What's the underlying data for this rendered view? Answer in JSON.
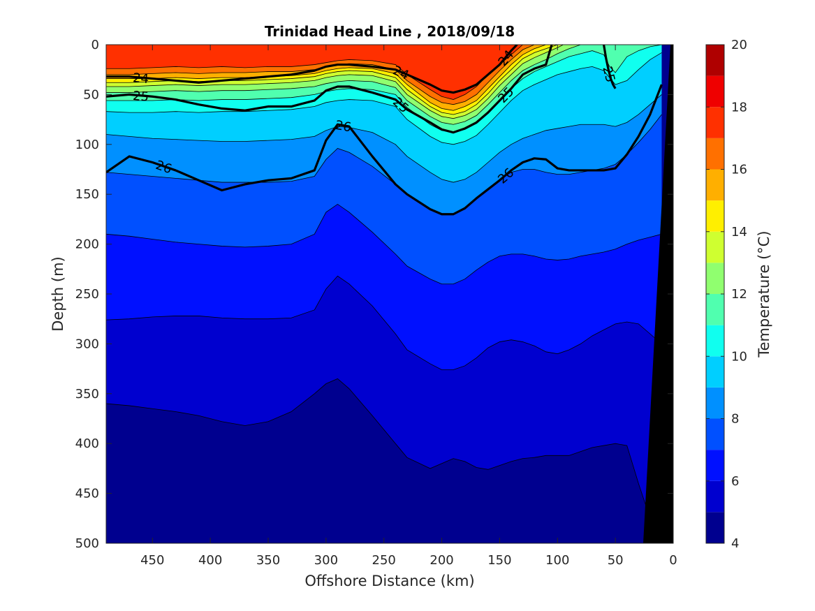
{
  "chart_data": {
    "type": "heatmap",
    "title": "Trinidad Head Line , 2018/09/18",
    "xlabel": "Offshore Distance (km)",
    "ylabel": "Depth (m)",
    "xlim": [
      490,
      0
    ],
    "ylim": [
      500,
      0
    ],
    "x_reversed": true,
    "y_reversed": true,
    "x_ticks": [
      450,
      400,
      350,
      300,
      250,
      200,
      150,
      100,
      50,
      0
    ],
    "y_ticks": [
      0,
      50,
      100,
      150,
      200,
      250,
      300,
      350,
      400,
      450,
      500
    ],
    "colorbar": {
      "label": "Temperature (°C)",
      "range": [
        4,
        20
      ],
      "ticks": [
        4,
        6,
        8,
        10,
        12,
        14,
        16,
        18,
        20
      ],
      "levels": [
        4,
        5,
        6,
        7,
        8,
        9,
        10,
        11,
        12,
        13,
        14,
        15,
        16,
        17,
        18,
        19,
        20
      ],
      "colors": [
        "#00008F",
        "#0000CF",
        "#0010FF",
        "#0050FF",
        "#0090FF",
        "#00CFFF",
        "#10FFEF",
        "#50FFAF",
        "#90FF6F",
        "#CFFF30",
        "#FFEF00",
        "#FFAF00",
        "#FF7000",
        "#FF3000",
        "#EF0000",
        "#AF0000"
      ]
    },
    "isotherm_boundaries": [
      {
        "level": 17,
        "x": [
          490,
          470,
          450,
          430,
          410,
          390,
          370,
          350,
          330,
          310,
          300,
          290,
          280,
          260,
          240,
          230,
          210,
          200,
          190,
          180,
          170,
          160,
          150,
          140,
          130
        ],
        "y": [
          24,
          24,
          23,
          22,
          23,
          22,
          23,
          22,
          22,
          20,
          18,
          16,
          15,
          16,
          20,
          30,
          45,
          52,
          55,
          50,
          42,
          30,
          20,
          10,
          0
        ]
      },
      {
        "level": 16,
        "x": [
          490,
          470,
          450,
          430,
          410,
          390,
          370,
          350,
          330,
          310,
          300,
          290,
          280,
          260,
          240,
          230,
          210,
          200,
          190,
          180,
          170,
          160,
          150,
          140,
          130,
          120
        ],
        "y": [
          30,
          30,
          29,
          28,
          29,
          28,
          28,
          27,
          27,
          25,
          22,
          20,
          19,
          20,
          25,
          36,
          52,
          58,
          60,
          57,
          50,
          38,
          26,
          15,
          5,
          0
        ]
      },
      {
        "level": 15,
        "x": [
          490,
          470,
          450,
          430,
          410,
          390,
          370,
          350,
          330,
          310,
          300,
          290,
          280,
          260,
          240,
          230,
          210,
          200,
          190,
          180,
          170,
          160,
          150,
          140,
          130,
          120,
          110
        ],
        "y": [
          34,
          34,
          34,
          33,
          34,
          33,
          33,
          32,
          31,
          29,
          26,
          24,
          23,
          24,
          29,
          40,
          58,
          64,
          66,
          62,
          56,
          44,
          32,
          20,
          10,
          4,
          0
        ]
      },
      {
        "level": 14,
        "x": [
          490,
          470,
          450,
          430,
          410,
          390,
          370,
          350,
          330,
          310,
          300,
          290,
          280,
          260,
          240,
          230,
          210,
          200,
          190,
          180,
          170,
          160,
          150,
          140,
          130,
          120,
          110,
          100
        ],
        "y": [
          38,
          38,
          37,
          36,
          37,
          36,
          36,
          35,
          34,
          32,
          29,
          27,
          26,
          27,
          33,
          45,
          62,
          68,
          70,
          67,
          60,
          49,
          36,
          25,
          14,
          8,
          4,
          0
        ]
      },
      {
        "level": 13,
        "x": [
          490,
          470,
          450,
          430,
          410,
          390,
          370,
          350,
          330,
          310,
          300,
          290,
          280,
          260,
          240,
          230,
          210,
          200,
          190,
          180,
          170,
          160,
          150,
          140,
          130,
          120,
          110,
          100,
          95
        ],
        "y": [
          42,
          42,
          41,
          40,
          41,
          40,
          40,
          39,
          38,
          36,
          33,
          31,
          30,
          31,
          37,
          50,
          66,
          72,
          74,
          71,
          65,
          54,
          41,
          30,
          19,
          13,
          8,
          3,
          0
        ]
      },
      {
        "level": 12,
        "x": [
          490,
          470,
          450,
          430,
          410,
          390,
          370,
          350,
          330,
          310,
          300,
          290,
          280,
          260,
          240,
          230,
          210,
          200,
          190,
          180,
          170,
          160,
          150,
          140,
          130,
          120,
          110,
          100,
          90,
          80
        ],
        "y": [
          48,
          48,
          47,
          46,
          47,
          46,
          46,
          45,
          44,
          42,
          39,
          37,
          36,
          37,
          43,
          56,
          72,
          78,
          80,
          77,
          71,
          60,
          48,
          36,
          26,
          20,
          15,
          9,
          4,
          0
        ]
      },
      {
        "level": 11,
        "x": [
          490,
          470,
          450,
          430,
          410,
          390,
          370,
          350,
          330,
          310,
          300,
          290,
          280,
          260,
          240,
          230,
          210,
          200,
          190,
          180,
          170,
          160,
          150,
          140,
          130,
          120,
          110,
          100,
          90,
          80,
          70,
          60,
          55,
          50,
          45,
          40,
          30,
          20,
          10
        ],
        "y": [
          56,
          56,
          56,
          55,
          56,
          55,
          55,
          54,
          53,
          50,
          47,
          45,
          44,
          45,
          50,
          63,
          80,
          86,
          88,
          85,
          79,
          68,
          56,
          44,
          34,
          27,
          22,
          17,
          12,
          9,
          6,
          10,
          22,
          28,
          20,
          12,
          6,
          2,
          0
        ]
      },
      {
        "level": 10,
        "x": [
          490,
          470,
          450,
          430,
          410,
          390,
          370,
          350,
          330,
          310,
          300,
          290,
          280,
          260,
          240,
          230,
          210,
          200,
          190,
          180,
          170,
          160,
          150,
          140,
          130,
          120,
          110,
          100,
          90,
          80,
          70,
          60,
          50,
          40,
          30,
          20,
          10
        ],
        "y": [
          67,
          68,
          68,
          67,
          68,
          67,
          67,
          66,
          65,
          62,
          58,
          56,
          55,
          56,
          62,
          75,
          92,
          98,
          100,
          97,
          91,
          80,
          68,
          56,
          46,
          40,
          35,
          30,
          27,
          24,
          22,
          26,
          40,
          36,
          25,
          15,
          8
        ]
      },
      {
        "level": 9,
        "x": [
          490,
          470,
          450,
          430,
          410,
          390,
          370,
          350,
          330,
          310,
          300,
          290,
          280,
          260,
          240,
          230,
          210,
          200,
          190,
          180,
          170,
          160,
          150,
          140,
          130,
          120,
          110,
          100,
          90,
          80,
          70,
          60,
          50,
          40,
          30,
          20,
          10
        ],
        "y": [
          90,
          92,
          94,
          95,
          96,
          97,
          97,
          96,
          95,
          92,
          86,
          82,
          83,
          88,
          100,
          112,
          128,
          135,
          138,
          135,
          128,
          118,
          108,
          100,
          94,
          90,
          86,
          84,
          82,
          80,
          80,
          80,
          82,
          78,
          70,
          60,
          50
        ]
      },
      {
        "level": 8,
        "x": [
          490,
          470,
          450,
          430,
          410,
          390,
          370,
          350,
          330,
          310,
          300,
          290,
          280,
          260,
          240,
          230,
          210,
          200,
          190,
          180,
          170,
          160,
          150,
          140,
          130,
          120,
          110,
          100,
          90,
          80,
          70,
          60,
          50,
          40,
          30,
          20,
          10
        ],
        "y": [
          128,
          130,
          132,
          134,
          136,
          138,
          138,
          138,
          137,
          132,
          115,
          104,
          108,
          122,
          140,
          150,
          165,
          170,
          170,
          165,
          155,
          145,
          135,
          128,
          125,
          125,
          128,
          130,
          130,
          128,
          126,
          124,
          120,
          110,
          98,
          85,
          70
        ]
      },
      {
        "level": 7,
        "x": [
          490,
          470,
          450,
          430,
          410,
          390,
          370,
          350,
          330,
          310,
          300,
          290,
          280,
          260,
          240,
          230,
          210,
          200,
          190,
          180,
          170,
          160,
          150,
          140,
          130,
          120,
          110,
          100,
          90,
          80,
          70,
          60,
          50,
          40,
          30,
          20,
          10
        ],
        "y": [
          190,
          192,
          195,
          198,
          200,
          202,
          203,
          202,
          200,
          190,
          168,
          160,
          168,
          188,
          210,
          222,
          235,
          240,
          240,
          235,
          226,
          218,
          212,
          210,
          210,
          212,
          215,
          216,
          215,
          212,
          210,
          208,
          205,
          200,
          196,
          193,
          190
        ]
      },
      {
        "level": 6,
        "x": [
          490,
          470,
          450,
          430,
          410,
          390,
          370,
          350,
          330,
          310,
          300,
          290,
          280,
          260,
          240,
          230,
          210,
          200,
          190,
          180,
          170,
          160,
          150,
          140,
          130,
          120,
          110,
          100,
          90,
          80,
          70,
          60,
          50,
          40,
          30,
          20,
          10
        ],
        "y": [
          276,
          275,
          273,
          272,
          272,
          274,
          275,
          275,
          274,
          266,
          245,
          232,
          240,
          262,
          290,
          306,
          320,
          326,
          326,
          322,
          314,
          304,
          298,
          296,
          298,
          302,
          308,
          310,
          306,
          300,
          292,
          286,
          280,
          278,
          280,
          290,
          300
        ]
      },
      {
        "level": 5,
        "x": [
          490,
          470,
          450,
          430,
          410,
          390,
          370,
          350,
          330,
          310,
          300,
          290,
          280,
          260,
          240,
          230,
          210,
          200,
          190,
          180,
          170,
          160,
          150,
          140,
          130,
          120,
          110,
          100,
          90,
          80,
          70,
          60,
          50,
          40,
          30,
          20,
          10
        ],
        "y": [
          360,
          362,
          365,
          368,
          372,
          378,
          382,
          378,
          368,
          350,
          340,
          335,
          345,
          372,
          400,
          414,
          425,
          420,
          415,
          418,
          424,
          426,
          422,
          418,
          415,
          414,
          412,
          412,
          412,
          408,
          404,
          402,
          400,
          402,
          440,
          475,
          500
        ]
      }
    ],
    "isopycnals": [
      {
        "label": "24",
        "bold": true,
        "x": [
          490,
          470,
          450,
          430,
          410,
          390,
          370,
          350,
          330,
          310,
          300,
          290,
          280,
          260,
          240,
          230,
          210,
          200,
          190,
          180,
          170,
          160,
          150,
          140,
          135
        ],
        "y": [
          32,
          32,
          34,
          36,
          38,
          36,
          34,
          32,
          30,
          26,
          22,
          20,
          20,
          22,
          25,
          30,
          40,
          46,
          48,
          45,
          40,
          30,
          20,
          6,
          0
        ]
      },
      {
        "label": "25",
        "bold": true,
        "x": [
          490,
          470,
          450,
          430,
          410,
          390,
          370,
          350,
          330,
          310,
          300,
          290,
          280,
          260,
          240,
          230,
          210,
          200,
          190,
          180,
          170,
          160,
          150,
          140,
          130,
          120,
          110,
          105
        ],
        "y": [
          52,
          50,
          52,
          55,
          60,
          64,
          66,
          62,
          62,
          56,
          46,
          42,
          42,
          48,
          55,
          65,
          78,
          85,
          88,
          84,
          78,
          68,
          56,
          44,
          30,
          24,
          20,
          0
        ]
      },
      {
        "label": "26",
        "bold": true,
        "x": [
          490,
          470,
          450,
          430,
          410,
          390,
          370,
          350,
          330,
          310,
          300,
          290,
          280,
          260,
          240,
          230,
          210,
          200,
          190,
          180,
          170,
          160,
          150,
          140,
          130,
          120,
          110,
          100,
          90,
          80,
          70,
          60,
          50,
          40,
          30,
          20,
          10
        ],
        "y": [
          128,
          112,
          118,
          126,
          136,
          146,
          140,
          136,
          134,
          126,
          96,
          80,
          82,
          112,
          140,
          150,
          165,
          170,
          170,
          164,
          154,
          145,
          136,
          126,
          118,
          114,
          115,
          124,
          126,
          126,
          126,
          126,
          124,
          110,
          92,
          70,
          40
        ]
      },
      {
        "label": "25",
        "bold": true,
        "x": [
          60,
          58,
          56,
          54,
          52,
          50
        ],
        "y": [
          0,
          14,
          25,
          34,
          40,
          44
        ]
      }
    ]
  }
}
